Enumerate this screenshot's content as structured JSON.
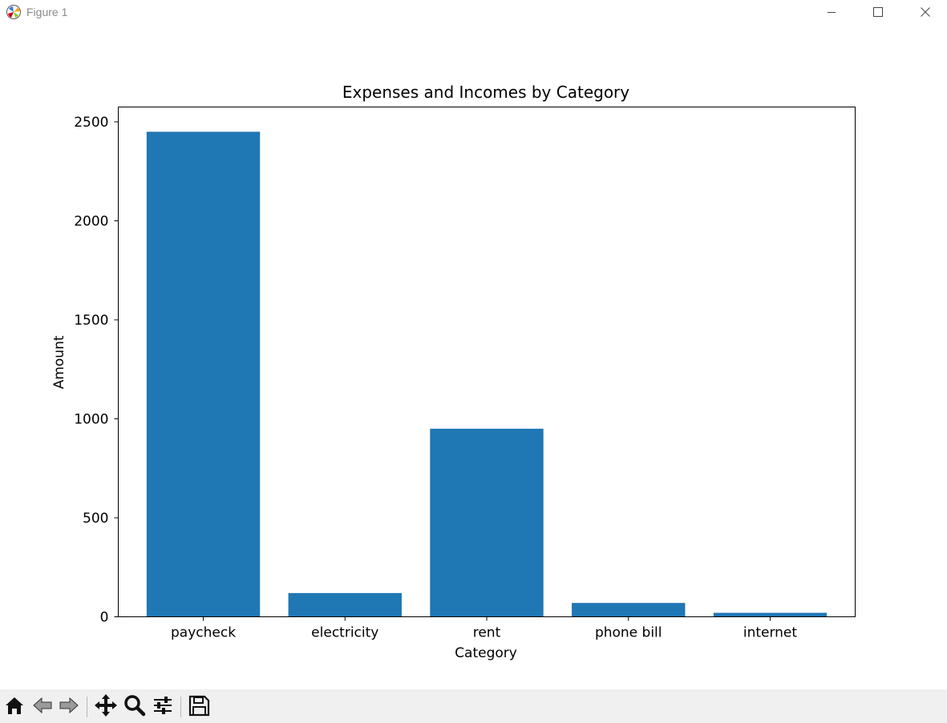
{
  "window": {
    "title": "Figure 1",
    "controls": [
      "minimize-icon",
      "maximize-icon",
      "close-icon"
    ]
  },
  "toolbar": {
    "tools": [
      {
        "name": "home-icon"
      },
      {
        "name": "back-arrow-icon"
      },
      {
        "name": "forward-arrow-icon"
      },
      {
        "name": "pan-move-icon"
      },
      {
        "name": "zoom-magnifier-icon"
      },
      {
        "name": "configure-subplots-icon"
      },
      {
        "name": "save-floppy-icon"
      }
    ]
  },
  "chart_data": {
    "type": "bar",
    "title": "Expenses and Incomes by Category",
    "xlabel": "Category",
    "ylabel": "Amount",
    "categories": [
      "paycheck",
      "electricity",
      "rent",
      "phone bill",
      "internet"
    ],
    "values": [
      2450,
      120,
      950,
      70,
      20
    ],
    "ylim": [
      0,
      2575
    ],
    "yticks": [
      0,
      500,
      1000,
      1500,
      2000,
      2500
    ],
    "bar_color": "#1f77b4",
    "grid": false
  }
}
